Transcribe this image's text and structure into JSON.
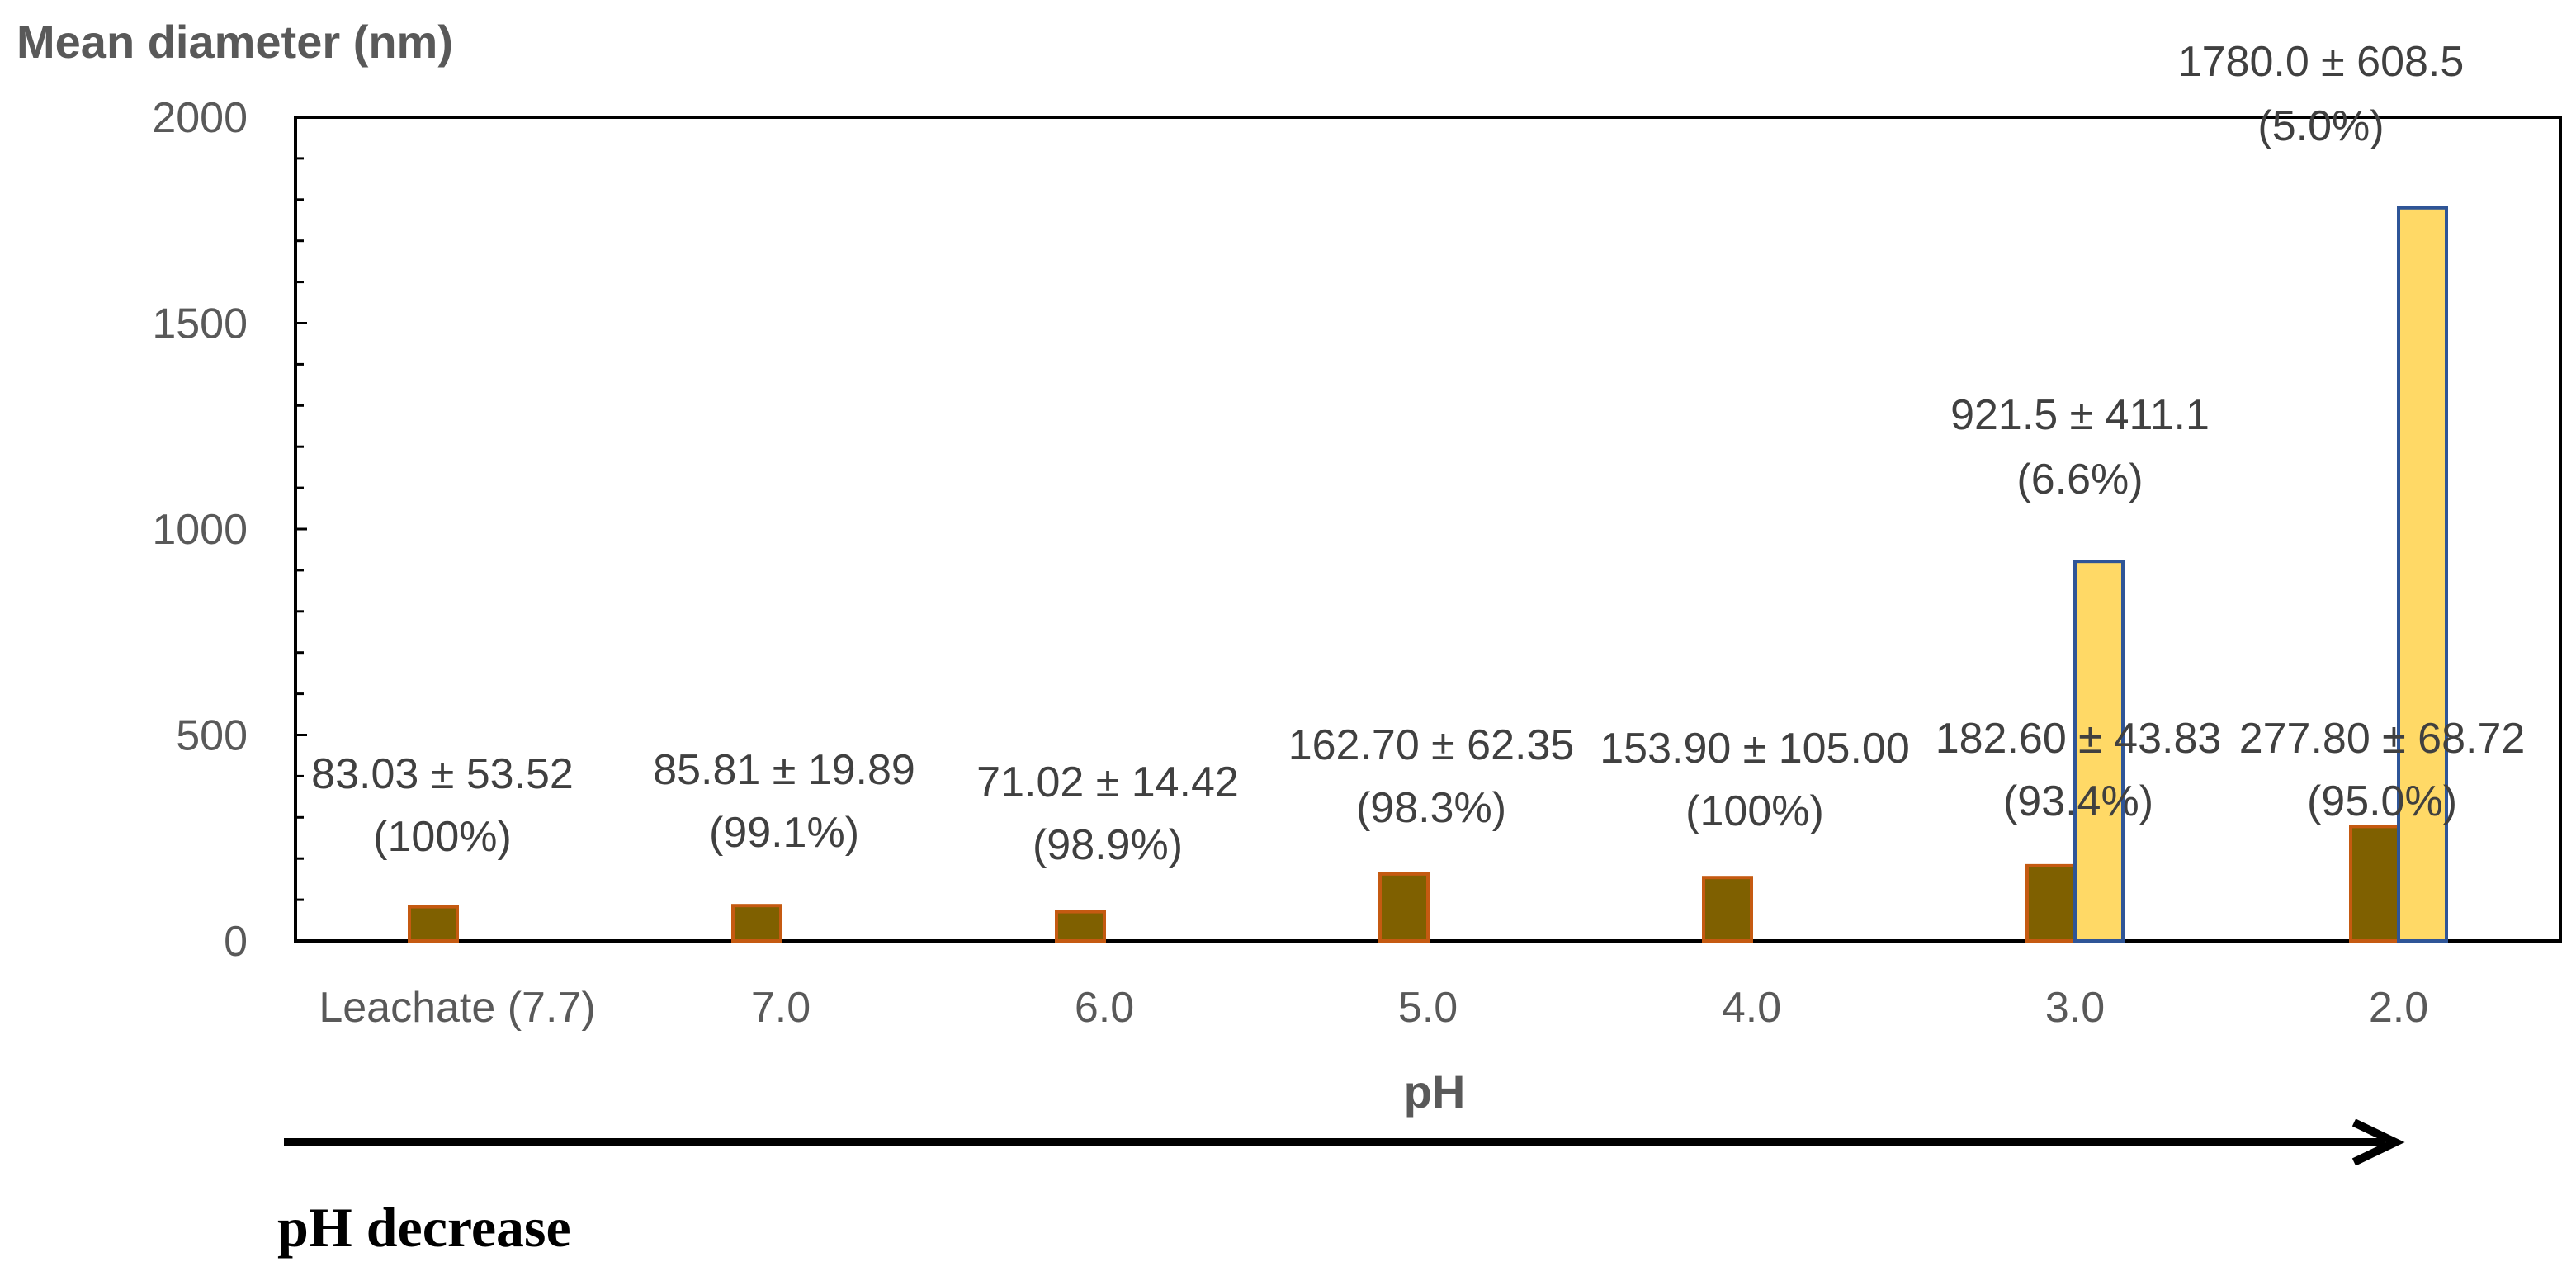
{
  "chart_data": {
    "type": "bar",
    "ylabel": "Mean diameter (nm)",
    "xlabel": "pH",
    "ylim": [
      0,
      2000
    ],
    "yticks": [
      0,
      500,
      1000,
      1500,
      2000
    ],
    "grid": false,
    "categories": [
      "Leachate (7.7)",
      "7.0",
      "6.0",
      "5.0",
      "4.0",
      "3.0",
      "2.0"
    ],
    "series": [
      {
        "color": "#7F6000",
        "edge": "#C55A11",
        "values": [
          83.03,
          85.81,
          71.02,
          162.7,
          153.9,
          182.6,
          277.8
        ],
        "labels": [
          [
            "83.03 ± 53.52",
            "(100%)"
          ],
          [
            "85.81 ± 19.89",
            "(99.1%)"
          ],
          [
            "71.02 ± 14.42",
            "(98.9%)"
          ],
          [
            "162.70 ± 62.35",
            "(98.3%)"
          ],
          [
            "153.90 ± 105.00",
            "(100%)"
          ],
          [
            "182.60 ± 43.83",
            "(93.4%)"
          ],
          [
            "277.80 ± 68.72",
            "(95.0%)"
          ]
        ]
      },
      {
        "color": "#FFD966",
        "edge": "#2F5597",
        "values": [
          null,
          null,
          null,
          null,
          null,
          921.5,
          1780.0
        ],
        "labels": [
          null,
          null,
          null,
          null,
          null,
          [
            "921.5 ± 411.1",
            "(6.6%)"
          ],
          [
            "1780.0 ± 608.5",
            "(5.0%)"
          ]
        ]
      }
    ]
  },
  "annotation": {
    "arrow_caption": "pH decrease"
  }
}
